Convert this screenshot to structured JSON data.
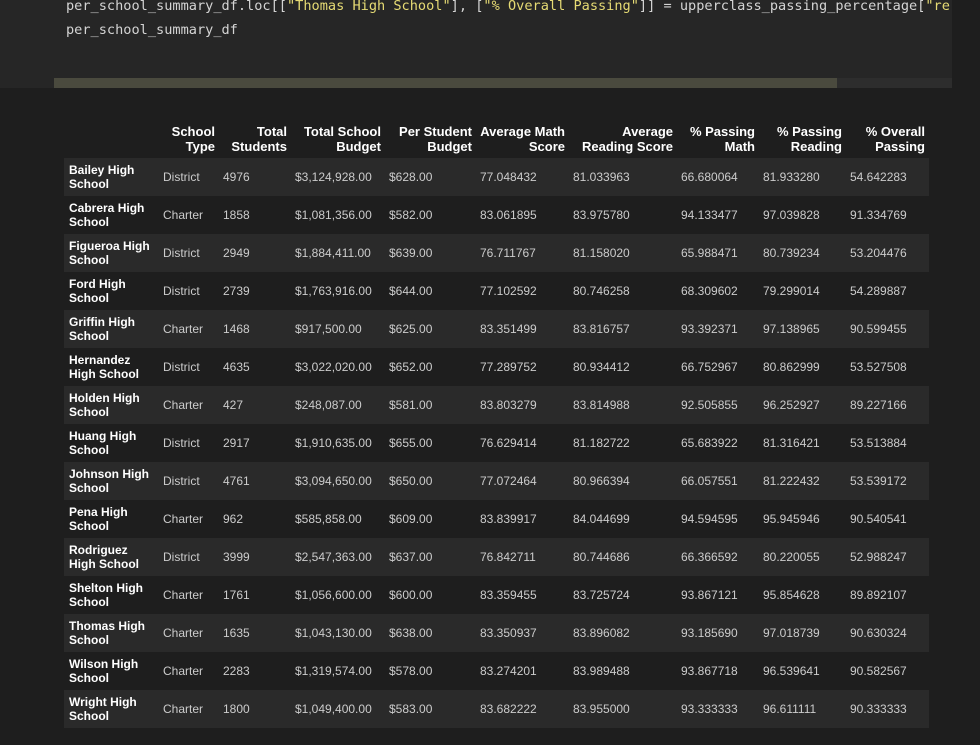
{
  "code": {
    "line1_prefix": "per_school_summary_df.loc[[",
    "line1_str1": "\"Thomas High School\"",
    "line1_mid": "], [",
    "line1_str2": "\"% Overall Passing\"",
    "line1_suffix": "]] = upperclass_passing_percentage[",
    "line1_str3": "\"re",
    "line2": "per_school_summary_df"
  },
  "table": {
    "columns": [
      "",
      "School Type",
      "Total Students",
      "Total School Budget",
      "Per Student Budget",
      "Average Math Score",
      "Average Reading Score",
      "% Passing Math",
      "% Passing Reading",
      "% Overall Passing"
    ],
    "rows": [
      [
        "Bailey High School",
        "District",
        "4976",
        "$3,124,928.00",
        "$628.00",
        "77.048432",
        "81.033963",
        "66.680064",
        "81.933280",
        "54.642283"
      ],
      [
        "Cabrera High School",
        "Charter",
        "1858",
        "$1,081,356.00",
        "$582.00",
        "83.061895",
        "83.975780",
        "94.133477",
        "97.039828",
        "91.334769"
      ],
      [
        "Figueroa High School",
        "District",
        "2949",
        "$1,884,411.00",
        "$639.00",
        "76.711767",
        "81.158020",
        "65.988471",
        "80.739234",
        "53.204476"
      ],
      [
        "Ford High School",
        "District",
        "2739",
        "$1,763,916.00",
        "$644.00",
        "77.102592",
        "80.746258",
        "68.309602",
        "79.299014",
        "54.289887"
      ],
      [
        "Griffin High School",
        "Charter",
        "1468",
        "$917,500.00",
        "$625.00",
        "83.351499",
        "83.816757",
        "93.392371",
        "97.138965",
        "90.599455"
      ],
      [
        "Hernandez High School",
        "District",
        "4635",
        "$3,022,020.00",
        "$652.00",
        "77.289752",
        "80.934412",
        "66.752967",
        "80.862999",
        "53.527508"
      ],
      [
        "Holden High School",
        "Charter",
        "427",
        "$248,087.00",
        "$581.00",
        "83.803279",
        "83.814988",
        "92.505855",
        "96.252927",
        "89.227166"
      ],
      [
        "Huang High School",
        "District",
        "2917",
        "$1,910,635.00",
        "$655.00",
        "76.629414",
        "81.182722",
        "65.683922",
        "81.316421",
        "53.513884"
      ],
      [
        "Johnson High School",
        "District",
        "4761",
        "$3,094,650.00",
        "$650.00",
        "77.072464",
        "80.966394",
        "66.057551",
        "81.222432",
        "53.539172"
      ],
      [
        "Pena High School",
        "Charter",
        "962",
        "$585,858.00",
        "$609.00",
        "83.839917",
        "84.044699",
        "94.594595",
        "95.945946",
        "90.540541"
      ],
      [
        "Rodriguez High School",
        "District",
        "3999",
        "$2,547,363.00",
        "$637.00",
        "76.842711",
        "80.744686",
        "66.366592",
        "80.220055",
        "52.988247"
      ],
      [
        "Shelton High School",
        "Charter",
        "1761",
        "$1,056,600.00",
        "$600.00",
        "83.359455",
        "83.725724",
        "93.867121",
        "95.854628",
        "89.892107"
      ],
      [
        "Thomas High School",
        "Charter",
        "1635",
        "$1,043,130.00",
        "$638.00",
        "83.350937",
        "83.896082",
        "93.185690",
        "97.018739",
        "90.630324"
      ],
      [
        "Wilson High School",
        "Charter",
        "2283",
        "$1,319,574.00",
        "$578.00",
        "83.274201",
        "83.989488",
        "93.867718",
        "96.539641",
        "90.582567"
      ],
      [
        "Wright High School",
        "Charter",
        "1800",
        "$1,049,400.00",
        "$583.00",
        "83.682222",
        "83.955000",
        "93.333333",
        "96.611111",
        "90.333333"
      ]
    ]
  },
  "colors": {
    "background": "#1e1e1e",
    "code_background": "#262626",
    "row_stripe": "#2a2a2a",
    "string": "#e6db74",
    "scroll_thumb": "#4a4a3e"
  }
}
